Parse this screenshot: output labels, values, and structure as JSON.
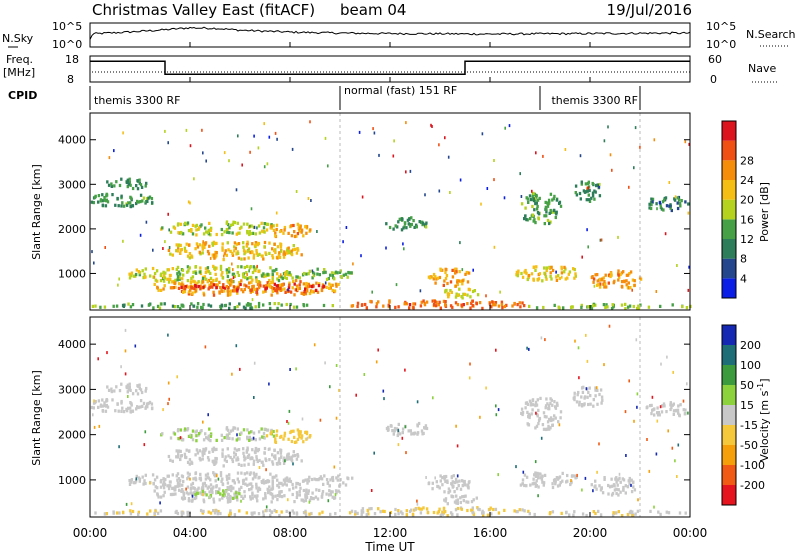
{
  "header": {
    "title": "Christmas Valley East (fitACF)",
    "beam": "beam 04",
    "date": "19/Jul/2016"
  },
  "chart_data": {
    "type": "heatmap",
    "time_ticks": [
      "00:00",
      "04:00",
      "08:00",
      "12:00",
      "16:00",
      "20:00",
      "00:00"
    ],
    "time_range_hours": [
      0,
      24
    ],
    "xlabel": "Time UT",
    "range_ticks": [
      1000,
      2000,
      3000,
      4000
    ],
    "range_limits_km": [
      180,
      4600
    ],
    "ylabel": "Slant Range [km]",
    "mode_boundaries_hours": [
      10,
      22
    ],
    "status_strip": {
      "nsky_label": "N.Sky",
      "nsearch_label": "N.Search",
      "left_ticks": [
        "10^5",
        "10^0"
      ],
      "right_ticks": [
        "10^5",
        "10^0"
      ],
      "nsky_profile": [
        [
          0,
          0.3
        ],
        [
          0.1,
          0.55
        ],
        [
          1.5,
          0.62
        ],
        [
          3,
          0.72
        ],
        [
          4,
          0.8
        ],
        [
          5,
          0.78
        ],
        [
          6,
          0.7
        ],
        [
          8,
          0.62
        ],
        [
          10,
          0.58
        ],
        [
          12,
          0.56
        ],
        [
          16,
          0.54
        ],
        [
          20,
          0.56
        ],
        [
          23,
          0.58
        ],
        [
          24,
          0.58
        ]
      ]
    },
    "freq_strip": {
      "freq_label": "Freq.",
      "freq_unit": "[MHz]",
      "nave_label": "Nave",
      "left_ticks": [
        "18",
        "8"
      ],
      "right_ticks": [
        "60",
        "0"
      ],
      "freq_profile": [
        [
          0,
          16
        ],
        [
          3,
          16
        ],
        [
          3,
          11
        ],
        [
          15,
          11
        ],
        [
          15,
          16
        ],
        [
          24,
          16
        ]
      ],
      "freq_range": [
        8,
        18
      ]
    },
    "cpid": {
      "label": "CPID",
      "segments": [
        {
          "start": 0,
          "end": 10,
          "text": "themis 3300 RF"
        },
        {
          "start": 10,
          "end": 18,
          "text": "normal (fast) 151 RF"
        },
        {
          "start": 18,
          "end": 22,
          "text": "themis 3300 RF"
        }
      ]
    },
    "power": {
      "title": "Power [dB]",
      "colorbar_ticks": [
        4,
        8,
        12,
        16,
        20,
        24,
        28
      ],
      "colorbar_range": [
        0,
        32
      ],
      "colors": [
        "#0a1ee6",
        "#23468c",
        "#2e7d5a",
        "#46a046",
        "#b4d21e",
        "#f5be14",
        "#f58c0a",
        "#f05014",
        "#dc141e"
      ],
      "regions": [
        {
          "t0": 0.0,
          "t1": 2.5,
          "r0": 2480,
          "r1": 2780,
          "v": 11
        },
        {
          "t0": 0.6,
          "t1": 2.2,
          "r0": 2880,
          "r1": 3120,
          "v": 10
        },
        {
          "t0": 2.8,
          "t1": 7.5,
          "r0": 1850,
          "r1": 2150,
          "v": 16
        },
        {
          "t0": 3.0,
          "t1": 8.5,
          "r0": 1300,
          "r1": 1700,
          "v": 20
        },
        {
          "t0": 7.0,
          "t1": 8.8,
          "r0": 1800,
          "r1": 2100,
          "v": 22
        },
        {
          "t0": 1.5,
          "t1": 8.5,
          "r0": 780,
          "r1": 1150,
          "v": 16
        },
        {
          "t0": 2.5,
          "t1": 10.0,
          "r0": 500,
          "r1": 850,
          "v": 22
        },
        {
          "t0": 3.5,
          "t1": 9.5,
          "r0": 560,
          "r1": 760,
          "v": 27
        },
        {
          "t0": 8.5,
          "t1": 10.5,
          "r0": 850,
          "r1": 1100,
          "v": 14
        },
        {
          "t0": 11.8,
          "t1": 13.5,
          "r0": 1950,
          "r1": 2250,
          "v": 11
        },
        {
          "t0": 13.5,
          "t1": 15.2,
          "r0": 700,
          "r1": 1100,
          "v": 22
        },
        {
          "t0": 14.0,
          "t1": 15.5,
          "r0": 440,
          "r1": 640,
          "v": 18
        },
        {
          "t0": 17.2,
          "t1": 18.8,
          "r0": 2100,
          "r1": 2800,
          "v": 12
        },
        {
          "t0": 17.0,
          "t1": 19.5,
          "r0": 820,
          "r1": 1150,
          "v": 19
        },
        {
          "t0": 19.3,
          "t1": 20.5,
          "r0": 2600,
          "r1": 3050,
          "v": 10
        },
        {
          "t0": 20.0,
          "t1": 22.0,
          "r0": 650,
          "r1": 1050,
          "v": 22
        },
        {
          "t0": 22.2,
          "t1": 24.0,
          "r0": 2400,
          "r1": 2700,
          "v": 9
        },
        {
          "t0": 10.0,
          "t1": 17.5,
          "r0": 200,
          "r1": 380,
          "v": 25
        },
        {
          "t0": 0.0,
          "t1": 10.0,
          "r0": 200,
          "r1": 320,
          "v": 12
        },
        {
          "t0": 17.5,
          "t1": 24.0,
          "r0": 200,
          "r1": 300,
          "v": 14
        }
      ]
    },
    "velocity": {
      "title": "Velocity [m s",
      "title_superscript": "-1",
      "title_close": "]",
      "colorbar_ticks": [
        "200",
        "100",
        "50",
        "15",
        "-15",
        "-50",
        "-100",
        "-200"
      ],
      "colorbar_range": [
        -250,
        250
      ],
      "colors": [
        "#e6141e",
        "#f05a14",
        "#f5a00a",
        "#f5c83c",
        "#c8c8c8",
        "#8cd23c",
        "#3c9b3c",
        "#1e6e78",
        "#1428b4"
      ],
      "regions": [
        {
          "t0": 0.0,
          "t1": 2.5,
          "r0": 2480,
          "r1": 2780,
          "v": 0
        },
        {
          "t0": 0.6,
          "t1": 2.2,
          "r0": 2880,
          "r1": 3120,
          "v": 0
        },
        {
          "t0": 2.8,
          "t1": 7.5,
          "r0": 1850,
          "r1": 2150,
          "v": 25
        },
        {
          "t0": 3.0,
          "t1": 8.5,
          "r0": 1300,
          "r1": 1700,
          "v": 0
        },
        {
          "t0": 7.0,
          "t1": 8.8,
          "r0": 1800,
          "r1": 2100,
          "v": -45
        },
        {
          "t0": 1.5,
          "t1": 8.5,
          "r0": 780,
          "r1": 1150,
          "v": 0
        },
        {
          "t0": 2.5,
          "t1": 10.0,
          "r0": 500,
          "r1": 850,
          "v": 0
        },
        {
          "t0": 4.0,
          "t1": 6.0,
          "r0": 560,
          "r1": 760,
          "v": 30
        },
        {
          "t0": 8.5,
          "t1": 10.5,
          "r0": 850,
          "r1": 1100,
          "v": 0
        },
        {
          "t0": 11.8,
          "t1": 13.5,
          "r0": 1950,
          "r1": 2250,
          "v": 0
        },
        {
          "t0": 13.5,
          "t1": 15.2,
          "r0": 700,
          "r1": 1100,
          "v": 0
        },
        {
          "t0": 14.0,
          "t1": 15.5,
          "r0": 440,
          "r1": 640,
          "v": 0
        },
        {
          "t0": 17.2,
          "t1": 18.8,
          "r0": 2100,
          "r1": 2800,
          "v": 0
        },
        {
          "t0": 17.0,
          "t1": 19.5,
          "r0": 820,
          "r1": 1150,
          "v": 0
        },
        {
          "t0": 19.3,
          "t1": 20.5,
          "r0": 2600,
          "r1": 3050,
          "v": 0
        },
        {
          "t0": 20.0,
          "t1": 22.0,
          "r0": 650,
          "r1": 1050,
          "v": 0
        },
        {
          "t0": 22.2,
          "t1": 24.0,
          "r0": 2400,
          "r1": 2700,
          "v": 0
        },
        {
          "t0": 10.0,
          "t1": 17.5,
          "r0": 200,
          "r1": 380,
          "v": -30
        },
        {
          "t0": 0.0,
          "t1": 10.0,
          "r0": 200,
          "r1": 320,
          "v": -25
        },
        {
          "t0": 17.5,
          "t1": 24.0,
          "r0": 200,
          "r1": 300,
          "v": -25
        }
      ]
    }
  }
}
